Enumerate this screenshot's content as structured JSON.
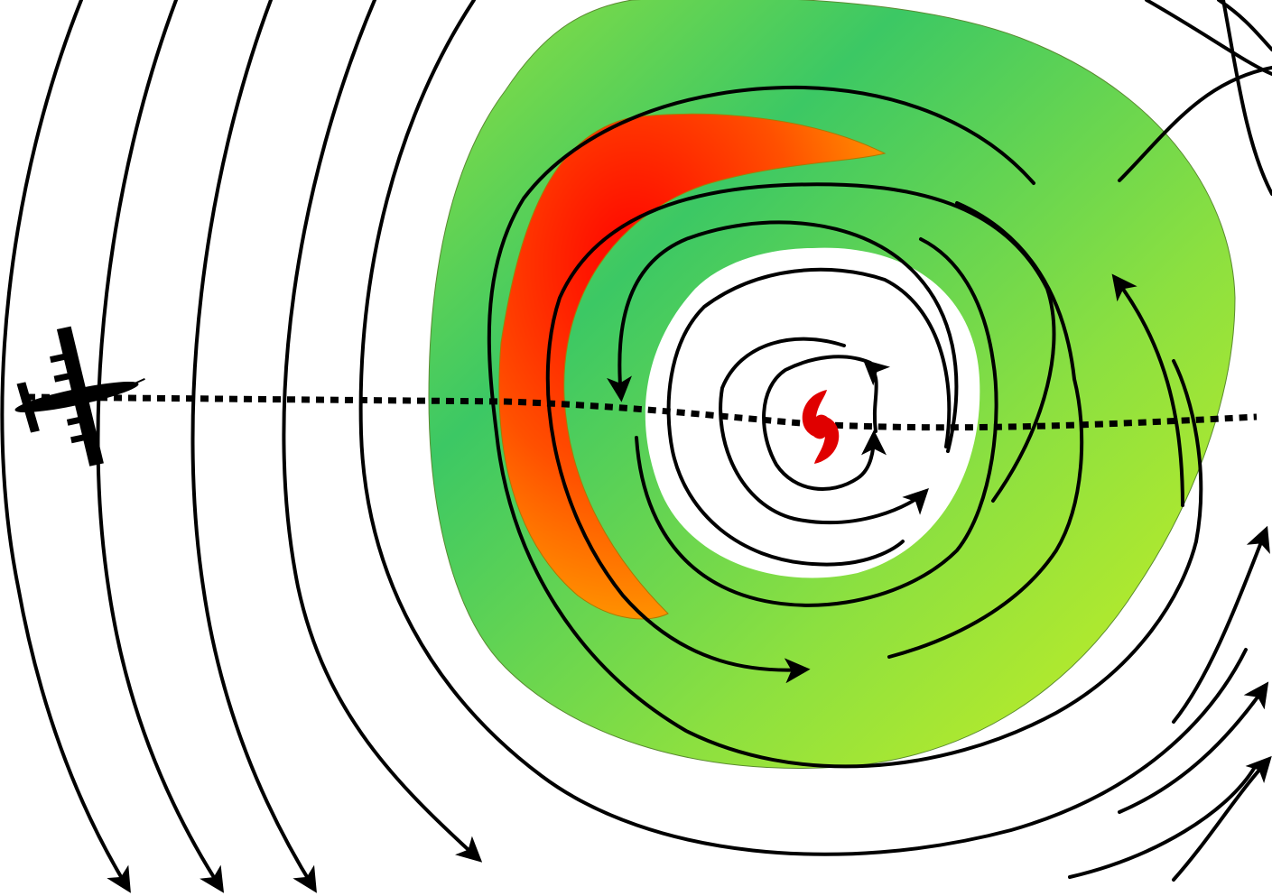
{
  "diagram": {
    "subject": "hurricane",
    "elements": {
      "eye": "clear",
      "eyewall_color": "#ff0000",
      "rain_shield_colors": [
        "#3cc864",
        "#8ce040",
        "#c8f020"
      ],
      "aircraft_track": "dashed",
      "aircraft": "airplane-icon",
      "storm_symbol": "hurricane-icon",
      "storm_symbol_color": "#e00000"
    }
  }
}
